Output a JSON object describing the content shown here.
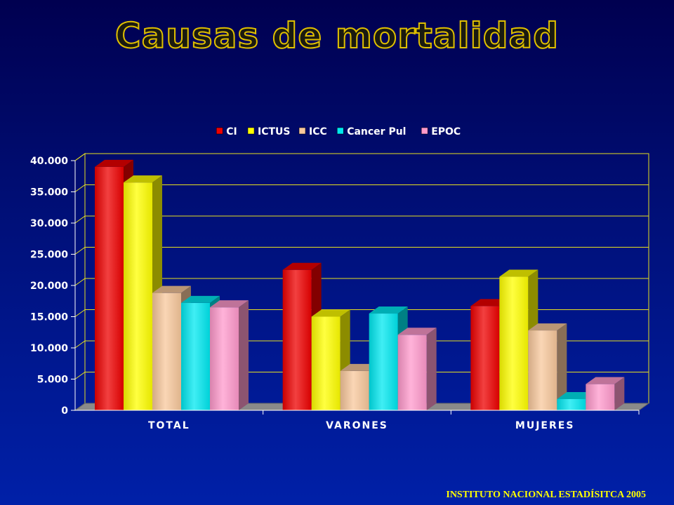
{
  "slide": {
    "title": "Causas de mortalidad",
    "source": "INSTITUTO NACIONAL ESTADÍSITCA 2005"
  },
  "colors": {
    "title_stroke": "#e0c000",
    "axis_text": "#ffffff",
    "gridline": "#e8e020",
    "source_text": "#ffff00"
  },
  "chart_data": {
    "type": "bar",
    "categories": [
      "TOTAL",
      "VARONES",
      "MUJERES"
    ],
    "series": [
      {
        "name": "CI",
        "values": [
          39000,
          22500,
          16700
        ],
        "color": "#ee0000"
      },
      {
        "name": "ICTUS",
        "values": [
          36500,
          15000,
          21400
        ],
        "color": "#ffff00"
      },
      {
        "name": "ICC",
        "values": [
          18800,
          6300,
          12800
        ],
        "color": "#f8c89c"
      },
      {
        "name": "Cancer Pul",
        "values": [
          17200,
          15500,
          1800
        ],
        "color": "#00e8f0"
      },
      {
        "name": "EPOC",
        "values": [
          16500,
          12100,
          4200
        ],
        "color": "#ff99cc"
      }
    ],
    "ylim": [
      0,
      40000
    ],
    "yticks": [
      "0",
      "5.000",
      "10.000",
      "15.000",
      "20.000",
      "25.000",
      "30.000",
      "35.000",
      "40.000"
    ],
    "ytick_values": [
      0,
      5000,
      10000,
      15000,
      20000,
      25000,
      30000,
      35000,
      40000
    ],
    "grid": true,
    "legend_position": "top"
  }
}
